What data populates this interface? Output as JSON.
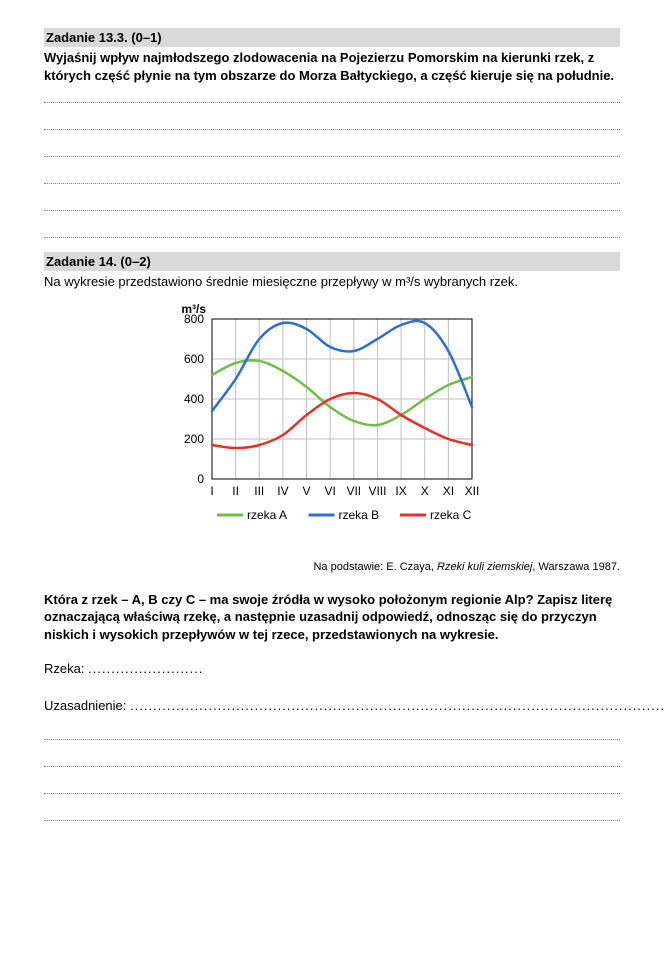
{
  "task13": {
    "header": "Zadanie 13.3. (0–1)",
    "body": "Wyjaśnij wpływ najmłodszego zlodowacenia na Pojezierzu Pomorskim na kierunki rzek, z których część płynie na tym obszarze do Morza Bałtyckiego, a część kieruje się na południe."
  },
  "task14": {
    "header": "Zadanie 14. (0–2)",
    "intro": "Na wykresie przedstawiono średnie miesięczne przepływy w m³/s wybranych rzek.",
    "source_prefix": "Na podstawie: E. Czaya, ",
    "source_italic": "Rzeki kuli ziemskiej",
    "source_suffix": ", Warszawa 1987.",
    "question": "Która z rzek – A, B czy C – ma swoje źródła w wysoko położonym regionie Alp? Zapisz literę oznaczającą właściwą rzekę, a następnie uzasadnij odpowiedź, odnosząc się do przyczyn niskich i wysokich przepływów w tej rzece, przedstawionych na wykresie.",
    "answer_label": "Rzeka: ",
    "justify_label": "Uzasadnienie: "
  },
  "chart": {
    "type": "line",
    "y_label": "m³/s",
    "background_color": "#ffffff",
    "grid_color": "#bfbfbf",
    "axis_color": "#000000",
    "label_fontsize": 12,
    "tick_fontsize": 12,
    "legend_fontsize": 12,
    "line_width": 2.5,
    "ylim": [
      0,
      800
    ],
    "ytick_step": 200,
    "yticks": [
      "0",
      "200",
      "400",
      "600",
      "800"
    ],
    "xticks": [
      "I",
      "II",
      "III",
      "IV",
      "V",
      "VI",
      "VII",
      "VIII",
      "IX",
      "X",
      "XI",
      "XII"
    ],
    "series": [
      {
        "name": "rzeka A",
        "color": "#6fbf44",
        "values": [
          520,
          580,
          590,
          540,
          460,
          360,
          290,
          270,
          320,
          400,
          470,
          510
        ]
      },
      {
        "name": "rzeka B",
        "color": "#2b6fd6",
        "values": [
          340,
          500,
          700,
          780,
          750,
          660,
          640,
          700,
          770,
          780,
          640,
          360
        ]
      },
      {
        "name": "rzeka C",
        "color": "#e63027",
        "values": [
          170,
          155,
          170,
          220,
          320,
          400,
          430,
          400,
          320,
          255,
          200,
          170
        ]
      }
    ]
  }
}
